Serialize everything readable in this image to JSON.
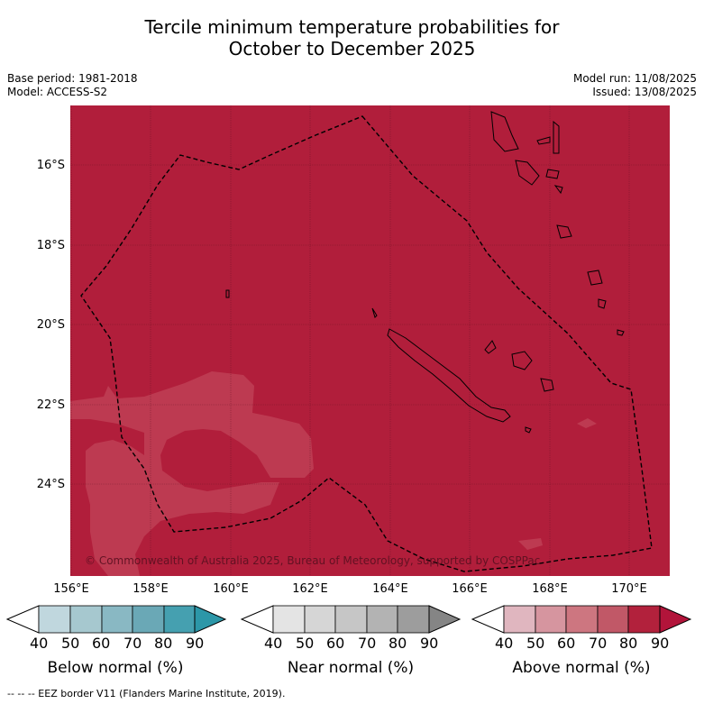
{
  "title_line1": "Tercile minimum temperature probabilities for",
  "title_line2": "October to December 2025",
  "base_period": "Base period: 1981-2018",
  "model": "Model: ACCESS-S2",
  "model_run": "Model run: 11/08/2025",
  "issued": "Issued: 13/08/2025",
  "copyright": "© Commonwealth of Australia 2025, Bureau of Meteorology, supported by COSPPac",
  "lat_labels": [
    "16°S",
    "18°S",
    "20°S",
    "22°S",
    "24°S"
  ],
  "lon_labels": [
    "156°E",
    "158°E",
    "160°E",
    "162°E",
    "164°E",
    "166°E",
    "168°E",
    "170°E"
  ],
  "colorbars": [
    {
      "title": "Below normal (%)",
      "ticks": [
        "40",
        "50",
        "60",
        "70",
        "80",
        "90"
      ],
      "colors": [
        "#ffffff",
        "#c0d7de",
        "#a6c8cf",
        "#89b8c3",
        "#6aa8b6",
        "#45a0b0",
        "#2c97a8"
      ]
    },
    {
      "title": "Near normal (%)",
      "ticks": [
        "40",
        "50",
        "60",
        "70",
        "80",
        "90"
      ],
      "colors": [
        "#ffffff",
        "#e4e4e4",
        "#d6d6d6",
        "#c6c6c6",
        "#b3b3b3",
        "#9d9d9d",
        "#858585"
      ]
    },
    {
      "title": "Above normal (%)",
      "ticks": [
        "40",
        "50",
        "60",
        "70",
        "80",
        "90"
      ],
      "colors": [
        "#ffffff",
        "#e0b6bf",
        "#d6959f",
        "#cd7680",
        "#c15867",
        "#b2213c",
        "#b2143a"
      ]
    }
  ],
  "footer": "--  --  -- EEZ border V11 (Flanders Marine Institute, 2019).",
  "colors": {
    "map_main": "#b11e3b",
    "map_light": "#bd3a51"
  }
}
